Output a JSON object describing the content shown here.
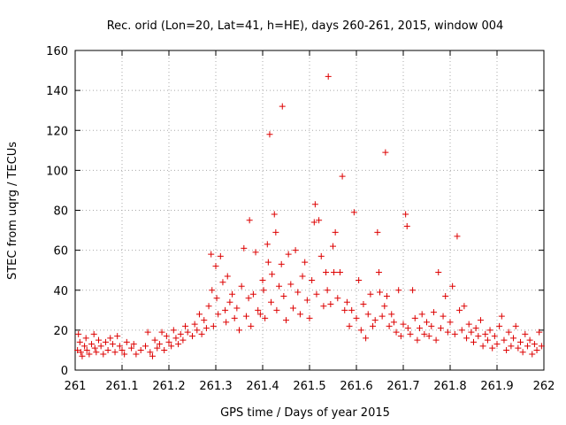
{
  "chart_data": {
    "type": "scatter",
    "title": "Rec. orid (Lon=20, Lat=41, h=HE), days 260-261, 2015, window 004",
    "xlabel": "GPS time / Days of year 2015",
    "ylabel": "STEC from uqrg / TECUs",
    "xlim": [
      261,
      262
    ],
    "ylim": [
      0,
      160
    ],
    "xticks": [
      261,
      261.1,
      261.2,
      261.3,
      261.4,
      261.5,
      261.6,
      261.7,
      261.8,
      261.9,
      262
    ],
    "xtick_labels": [
      "261",
      "261.1",
      "261.2",
      "261.3",
      "261.4",
      "261.5",
      "261.6",
      "261.7",
      "261.8",
      "261.9",
      "262"
    ],
    "yticks": [
      0,
      20,
      40,
      60,
      80,
      100,
      120,
      140,
      160
    ],
    "ytick_labels": [
      "0",
      "20",
      "40",
      "60",
      "80",
      "100",
      "120",
      "140",
      "160"
    ],
    "grid": true,
    "marker": "+",
    "color": "#dd0000",
    "series": [
      {
        "name": "STEC",
        "points": [
          [
            261.005,
            10
          ],
          [
            261.007,
            18
          ],
          [
            261.01,
            14
          ],
          [
            261.012,
            9
          ],
          [
            261.015,
            7
          ],
          [
            261.02,
            12
          ],
          [
            261.023,
            16
          ],
          [
            261.025,
            10
          ],
          [
            261.03,
            8
          ],
          [
            261.035,
            13
          ],
          [
            261.04,
            18
          ],
          [
            261.042,
            11
          ],
          [
            261.045,
            9
          ],
          [
            261.05,
            15
          ],
          [
            261.055,
            12
          ],
          [
            261.06,
            8
          ],
          [
            261.065,
            14
          ],
          [
            261.07,
            10
          ],
          [
            261.075,
            16
          ],
          [
            261.08,
            13
          ],
          [
            261.085,
            9
          ],
          [
            261.09,
            17
          ],
          [
            261.095,
            12
          ],
          [
            261.1,
            10
          ],
          [
            261.105,
            8
          ],
          [
            261.11,
            14
          ],
          [
            261.12,
            11
          ],
          [
            261.125,
            13
          ],
          [
            261.13,
            8
          ],
          [
            261.14,
            10
          ],
          [
            261.15,
            12
          ],
          [
            261.155,
            19
          ],
          [
            261.16,
            9
          ],
          [
            261.165,
            7
          ],
          [
            261.17,
            15
          ],
          [
            261.175,
            11
          ],
          [
            261.18,
            13
          ],
          [
            261.185,
            19
          ],
          [
            261.19,
            10
          ],
          [
            261.195,
            17
          ],
          [
            261.2,
            14
          ],
          [
            261.205,
            12
          ],
          [
            261.21,
            20
          ],
          [
            261.215,
            16
          ],
          [
            261.22,
            13
          ],
          [
            261.225,
            18
          ],
          [
            261.23,
            15
          ],
          [
            261.235,
            22
          ],
          [
            261.24,
            19
          ],
          [
            261.25,
            17
          ],
          [
            261.255,
            23
          ],
          [
            261.26,
            20
          ],
          [
            261.265,
            28
          ],
          [
            261.27,
            18
          ],
          [
            261.275,
            25
          ],
          [
            261.28,
            21
          ],
          [
            261.285,
            32
          ],
          [
            261.29,
            58
          ],
          [
            261.292,
            40
          ],
          [
            261.295,
            22
          ],
          [
            261.3,
            52
          ],
          [
            261.302,
            36
          ],
          [
            261.305,
            28
          ],
          [
            261.31,
            57
          ],
          [
            261.315,
            44
          ],
          [
            261.32,
            30
          ],
          [
            261.322,
            24
          ],
          [
            261.325,
            47
          ],
          [
            261.33,
            34
          ],
          [
            261.335,
            38
          ],
          [
            261.34,
            26
          ],
          [
            261.345,
            31
          ],
          [
            261.35,
            20
          ],
          [
            261.355,
            42
          ],
          [
            261.36,
            61
          ],
          [
            261.365,
            27
          ],
          [
            261.37,
            36
          ],
          [
            261.372,
            75
          ],
          [
            261.375,
            22
          ],
          [
            261.38,
            38
          ],
          [
            261.385,
            59
          ],
          [
            261.39,
            30
          ],
          [
            261.395,
            28
          ],
          [
            261.4,
            45
          ],
          [
            261.402,
            40
          ],
          [
            261.405,
            26
          ],
          [
            261.41,
            63
          ],
          [
            261.412,
            54
          ],
          [
            261.415,
            118
          ],
          [
            261.418,
            34
          ],
          [
            261.42,
            48
          ],
          [
            261.425,
            78
          ],
          [
            261.428,
            69
          ],
          [
            261.43,
            30
          ],
          [
            261.435,
            42
          ],
          [
            261.44,
            53
          ],
          [
            261.442,
            132
          ],
          [
            261.445,
            37
          ],
          [
            261.45,
            25
          ],
          [
            261.455,
            58
          ],
          [
            261.46,
            43
          ],
          [
            261.465,
            31
          ],
          [
            261.47,
            60
          ],
          [
            261.475,
            39
          ],
          [
            261.48,
            28
          ],
          [
            261.485,
            47
          ],
          [
            261.49,
            54
          ],
          [
            261.495,
            35
          ],
          [
            261.5,
            26
          ],
          [
            261.505,
            45
          ],
          [
            261.51,
            74
          ],
          [
            261.512,
            83
          ],
          [
            261.515,
            38
          ],
          [
            261.52,
            75
          ],
          [
            261.525,
            57
          ],
          [
            261.53,
            32
          ],
          [
            261.535,
            49
          ],
          [
            261.538,
            40
          ],
          [
            261.54,
            147
          ],
          [
            261.545,
            33
          ],
          [
            261.55,
            62
          ],
          [
            261.552,
            49
          ],
          [
            261.555,
            69
          ],
          [
            261.56,
            36
          ],
          [
            261.565,
            49
          ],
          [
            261.57,
            97
          ],
          [
            261.575,
            30
          ],
          [
            261.58,
            34
          ],
          [
            261.585,
            22
          ],
          [
            261.59,
            30
          ],
          [
            261.595,
            79
          ],
          [
            261.6,
            26
          ],
          [
            261.605,
            45
          ],
          [
            261.61,
            20
          ],
          [
            261.615,
            33
          ],
          [
            261.62,
            16
          ],
          [
            261.625,
            28
          ],
          [
            261.63,
            38
          ],
          [
            261.635,
            22
          ],
          [
            261.64,
            25
          ],
          [
            261.645,
            69
          ],
          [
            261.648,
            49
          ],
          [
            261.65,
            39
          ],
          [
            261.655,
            27
          ],
          [
            261.66,
            32
          ],
          [
            261.662,
            109
          ],
          [
            261.665,
            37
          ],
          [
            261.67,
            22
          ],
          [
            261.675,
            28
          ],
          [
            261.68,
            24
          ],
          [
            261.685,
            19
          ],
          [
            261.69,
            40
          ],
          [
            261.695,
            17
          ],
          [
            261.7,
            23
          ],
          [
            261.705,
            78
          ],
          [
            261.708,
            72
          ],
          [
            261.71,
            21
          ],
          [
            261.715,
            18
          ],
          [
            261.72,
            40
          ],
          [
            261.725,
            26
          ],
          [
            261.73,
            15
          ],
          [
            261.735,
            21
          ],
          [
            261.74,
            28
          ],
          [
            261.745,
            18
          ],
          [
            261.75,
            24
          ],
          [
            261.755,
            17
          ],
          [
            261.76,
            22
          ],
          [
            261.765,
            29
          ],
          [
            261.77,
            15
          ],
          [
            261.775,
            49
          ],
          [
            261.78,
            21
          ],
          [
            261.785,
            27
          ],
          [
            261.79,
            37
          ],
          [
            261.795,
            19
          ],
          [
            261.8,
            24
          ],
          [
            261.805,
            42
          ],
          [
            261.81,
            18
          ],
          [
            261.815,
            67
          ],
          [
            261.82,
            30
          ],
          [
            261.825,
            20
          ],
          [
            261.83,
            32
          ],
          [
            261.835,
            16
          ],
          [
            261.84,
            23
          ],
          [
            261.845,
            19
          ],
          [
            261.85,
            14
          ],
          [
            261.855,
            21
          ],
          [
            261.86,
            17
          ],
          [
            261.865,
            25
          ],
          [
            261.87,
            12
          ],
          [
            261.875,
            18
          ],
          [
            261.88,
            15
          ],
          [
            261.885,
            20
          ],
          [
            261.89,
            11
          ],
          [
            261.895,
            17
          ],
          [
            261.9,
            13
          ],
          [
            261.905,
            22
          ],
          [
            261.91,
            27
          ],
          [
            261.915,
            15
          ],
          [
            261.92,
            10
          ],
          [
            261.925,
            19
          ],
          [
            261.93,
            12
          ],
          [
            261.935,
            16
          ],
          [
            261.94,
            22
          ],
          [
            261.945,
            11
          ],
          [
            261.95,
            14
          ],
          [
            261.955,
            9
          ],
          [
            261.96,
            18
          ],
          [
            261.965,
            12
          ],
          [
            261.97,
            15
          ],
          [
            261.975,
            8
          ],
          [
            261.98,
            13
          ],
          [
            261.985,
            10
          ],
          [
            261.99,
            19
          ],
          [
            261.995,
            12
          ]
        ]
      }
    ]
  }
}
